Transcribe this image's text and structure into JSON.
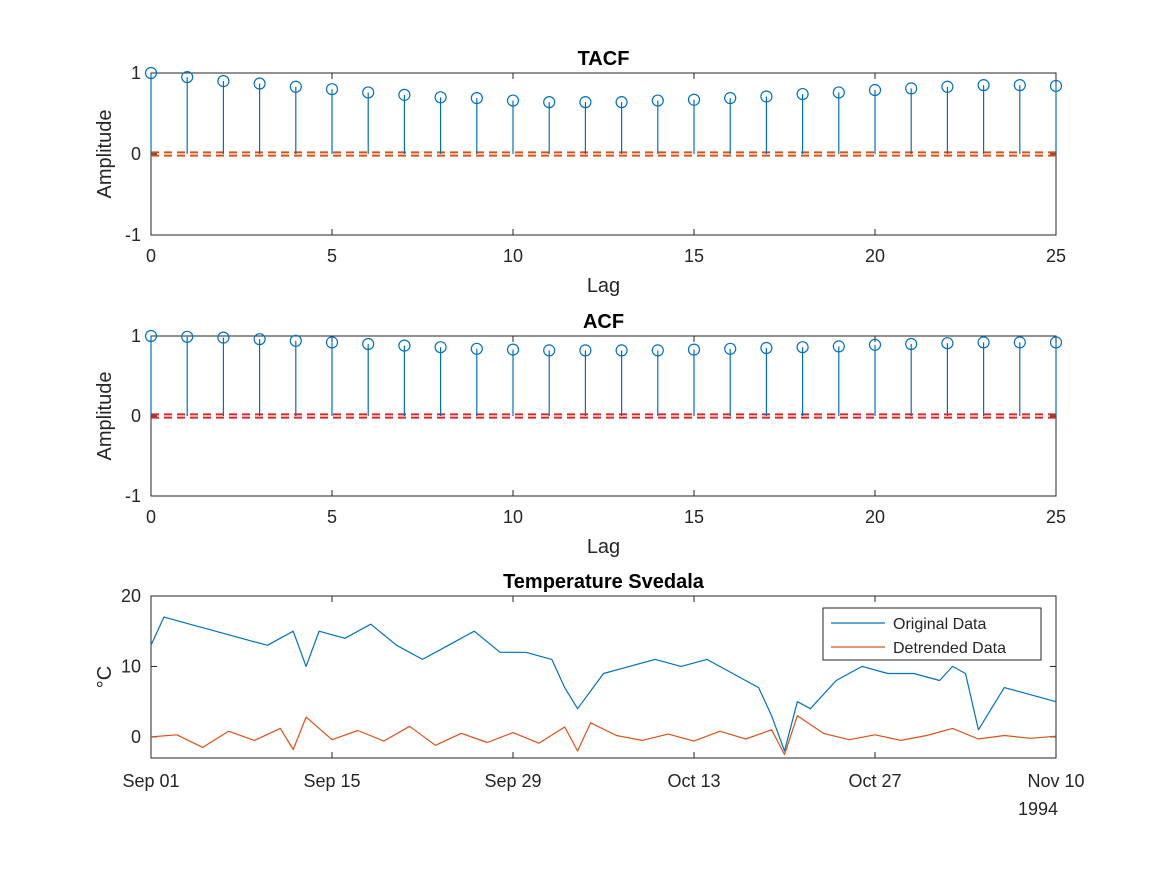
{
  "chart_data": [
    {
      "type": "stem",
      "title": "TACF",
      "xlabel": "Lag",
      "ylabel": "Amplitude",
      "xlim": [
        0,
        25
      ],
      "ylim": [
        -1,
        1
      ],
      "xticks": [
        "0",
        "5",
        "10",
        "15",
        "20",
        "25"
      ],
      "yticks": [
        "-1",
        "0",
        "1"
      ],
      "x": [
        0,
        1,
        2,
        3,
        4,
        5,
        6,
        7,
        8,
        9,
        10,
        11,
        12,
        13,
        14,
        15,
        16,
        17,
        18,
        19,
        20,
        21,
        22,
        23,
        24,
        25
      ],
      "values": [
        1.0,
        0.95,
        0.9,
        0.87,
        0.83,
        0.8,
        0.76,
        0.73,
        0.7,
        0.69,
        0.66,
        0.64,
        0.64,
        0.64,
        0.66,
        0.67,
        0.69,
        0.71,
        0.74,
        0.76,
        0.79,
        0.81,
        0.83,
        0.85,
        0.85,
        0.84
      ],
      "confidence_bounds": [
        0.02,
        -0.02
      ],
      "colors": {
        "stem": "#0072BD",
        "bounds": "#D95319"
      }
    },
    {
      "type": "stem",
      "title": "ACF",
      "xlabel": "Lag",
      "ylabel": "Amplitude",
      "xlim": [
        0,
        25
      ],
      "ylim": [
        -1,
        1
      ],
      "xticks": [
        "0",
        "5",
        "10",
        "15",
        "20",
        "25"
      ],
      "yticks": [
        "-1",
        "0",
        "1"
      ],
      "x": [
        0,
        1,
        2,
        3,
        4,
        5,
        6,
        7,
        8,
        9,
        10,
        11,
        12,
        13,
        14,
        15,
        16,
        17,
        18,
        19,
        20,
        21,
        22,
        23,
        24,
        25
      ],
      "values": [
        1.0,
        0.99,
        0.98,
        0.96,
        0.94,
        0.92,
        0.9,
        0.88,
        0.86,
        0.84,
        0.83,
        0.82,
        0.82,
        0.82,
        0.82,
        0.83,
        0.84,
        0.85,
        0.86,
        0.87,
        0.89,
        0.9,
        0.91,
        0.92,
        0.92,
        0.92
      ],
      "confidence_bounds": [
        0.02,
        -0.02
      ],
      "colors": {
        "stem": "#0072BD",
        "bounds": "#D62728"
      }
    },
    {
      "type": "line",
      "title": "Temperature Svedala",
      "ylabel": "°C",
      "xlim": [
        "1994-09-01",
        "1994-11-10"
      ],
      "ylim": [
        -3,
        20
      ],
      "xticks": [
        "Sep 01",
        "Sep 15",
        "Sep 29",
        "Oct 13",
        "Oct 27",
        "Nov 10"
      ],
      "xtick_year": "1994",
      "yticks": [
        "0",
        "10",
        "20"
      ],
      "legend": {
        "position": "top-right",
        "entries": [
          "Original Data",
          "Detrended Data"
        ]
      },
      "series": [
        {
          "name": "Original Data",
          "color": "#0072BD",
          "x": [
            "1994-09-01",
            "1994-09-02",
            "1994-09-04",
            "1994-09-06",
            "1994-09-08",
            "1994-09-10",
            "1994-09-12",
            "1994-09-13",
            "1994-09-14",
            "1994-09-16",
            "1994-09-18",
            "1994-09-20",
            "1994-09-22",
            "1994-09-24",
            "1994-09-26",
            "1994-09-28",
            "1994-09-30",
            "1994-10-02",
            "1994-10-03",
            "1994-10-04",
            "1994-10-06",
            "1994-10-08",
            "1994-10-10",
            "1994-10-12",
            "1994-10-14",
            "1994-10-16",
            "1994-10-18",
            "1994-10-19",
            "1994-10-20",
            "1994-10-21",
            "1994-10-22",
            "1994-10-24",
            "1994-10-26",
            "1994-10-28",
            "1994-10-30",
            "1994-11-01",
            "1994-11-02",
            "1994-11-03",
            "1994-11-04",
            "1994-11-06",
            "1994-11-08",
            "1994-11-10"
          ],
          "values": [
            13,
            17,
            16,
            15,
            14,
            13,
            15,
            10,
            15,
            14,
            16,
            13,
            11,
            13,
            15,
            12,
            12,
            11,
            7,
            4,
            9,
            10,
            11,
            10,
            11,
            9,
            7,
            3,
            -2,
            5,
            4,
            8,
            10,
            9,
            9,
            8,
            10,
            9,
            1,
            7,
            6,
            5
          ]
        },
        {
          "name": "Detrended Data",
          "color": "#D95319",
          "x": [
            "1994-09-01",
            "1994-09-03",
            "1994-09-05",
            "1994-09-07",
            "1994-09-09",
            "1994-09-11",
            "1994-09-12",
            "1994-09-13",
            "1994-09-15",
            "1994-09-17",
            "1994-09-19",
            "1994-09-21",
            "1994-09-23",
            "1994-09-25",
            "1994-09-27",
            "1994-09-29",
            "1994-10-01",
            "1994-10-03",
            "1994-10-04",
            "1994-10-05",
            "1994-10-07",
            "1994-10-09",
            "1994-10-11",
            "1994-10-13",
            "1994-10-15",
            "1994-10-17",
            "1994-10-19",
            "1994-10-20",
            "1994-10-21",
            "1994-10-23",
            "1994-10-25",
            "1994-10-27",
            "1994-10-29",
            "1994-10-31",
            "1994-11-02",
            "1994-11-04",
            "1994-11-06",
            "1994-11-08",
            "1994-11-10"
          ],
          "values": [
            0,
            0.3,
            -1.5,
            0.8,
            -0.5,
            1.2,
            -1.8,
            2.8,
            -0.4,
            0.9,
            -0.6,
            1.5,
            -1.2,
            0.5,
            -0.8,
            0.6,
            -0.9,
            1.4,
            -2.0,
            2.0,
            0.2,
            -0.5,
            0.4,
            -0.6,
            0.8,
            -0.3,
            1.0,
            -2.5,
            3.0,
            0.5,
            -0.4,
            0.3,
            -0.5,
            0.2,
            1.2,
            -0.3,
            0.2,
            -0.2,
            0.1
          ]
        }
      ]
    }
  ]
}
